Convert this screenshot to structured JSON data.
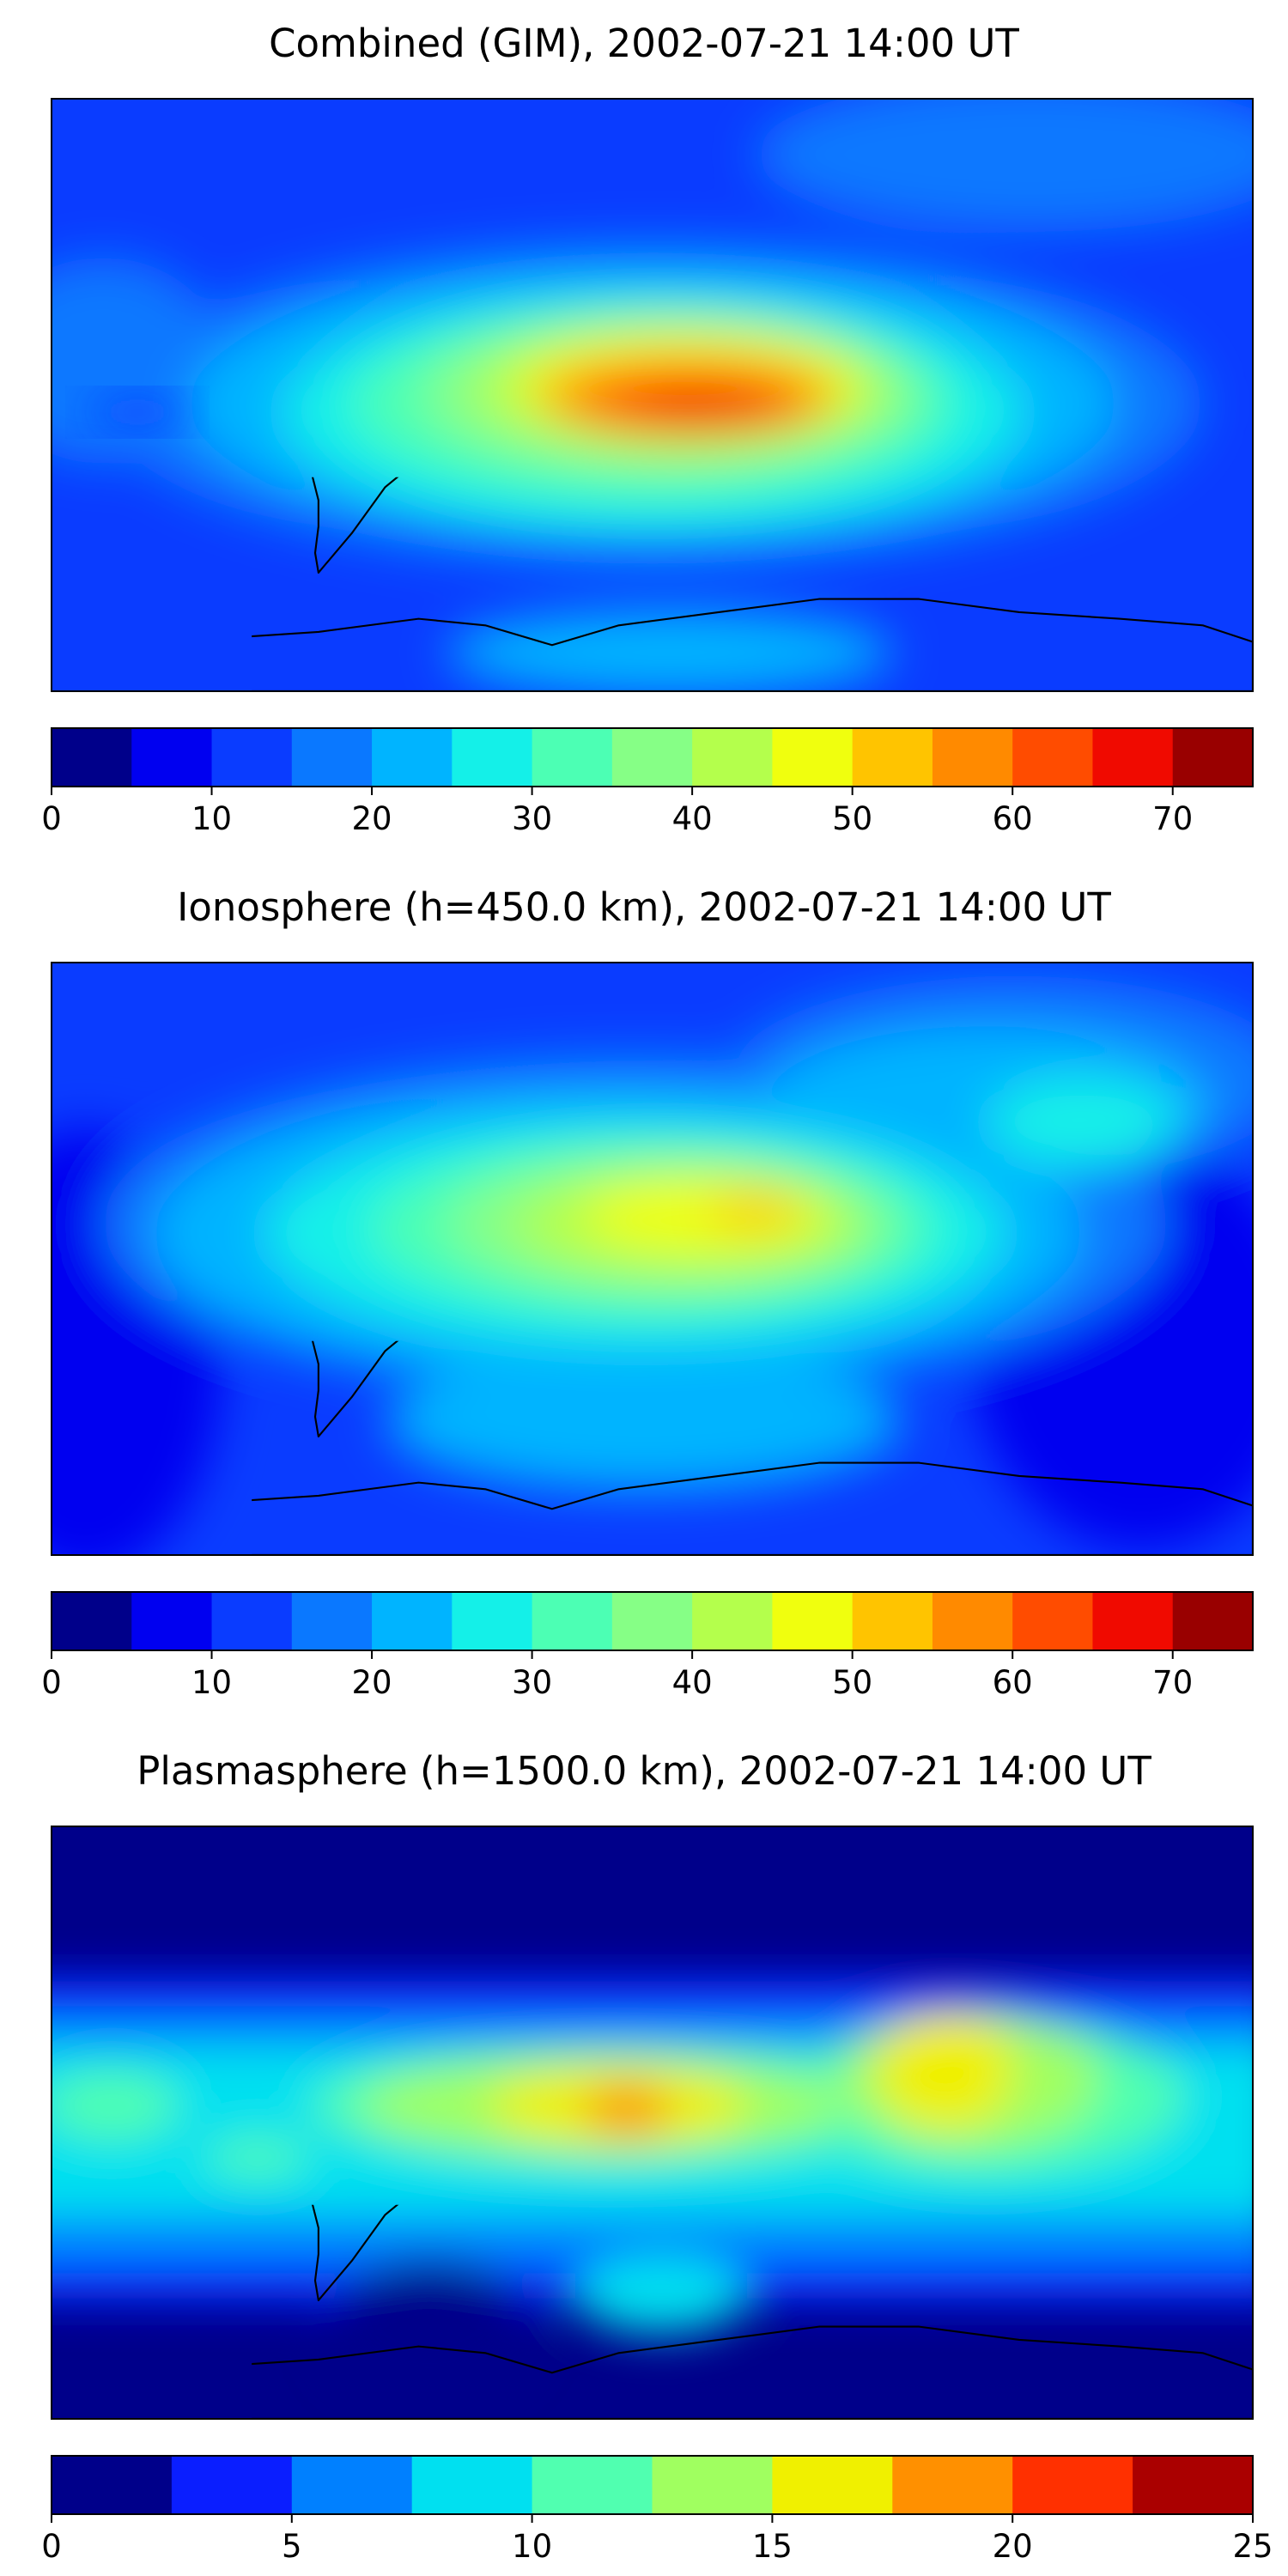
{
  "panels": [
    {
      "title": "Combined (GIM), 2002-07-21 14:00 UT",
      "colorbar": {
        "ticks": [
          {
            "value": 0,
            "label": "0"
          },
          {
            "value": 10,
            "label": "10"
          },
          {
            "value": 20,
            "label": "20"
          },
          {
            "value": 30,
            "label": "30"
          },
          {
            "value": 40,
            "label": "40"
          },
          {
            "value": 50,
            "label": "50"
          },
          {
            "value": 60,
            "label": "60"
          },
          {
            "value": 70,
            "label": "70"
          }
        ],
        "range": [
          0,
          75
        ],
        "colors": [
          "#00008a",
          "#0000f0",
          "#0a3cff",
          "#0a78ff",
          "#00b4ff",
          "#14f0e8",
          "#4cffb4",
          "#86ff86",
          "#b4ff4c",
          "#f0ff0e",
          "#ffc400",
          "#ff8a00",
          "#ff4c00",
          "#f00a00",
          "#990000"
        ]
      }
    },
    {
      "title": "Ionosphere  (h=450.0 km), 2002-07-21 14:00 UT",
      "colorbar": {
        "ticks": [
          {
            "value": 0,
            "label": "0"
          },
          {
            "value": 10,
            "label": "10"
          },
          {
            "value": 20,
            "label": "20"
          },
          {
            "value": 30,
            "label": "30"
          },
          {
            "value": 40,
            "label": "40"
          },
          {
            "value": 50,
            "label": "50"
          },
          {
            "value": 60,
            "label": "60"
          },
          {
            "value": 70,
            "label": "70"
          }
        ],
        "range": [
          0,
          75
        ],
        "colors": [
          "#00008a",
          "#0000f0",
          "#0a3cff",
          "#0a78ff",
          "#00b4ff",
          "#14f0e8",
          "#4cffb4",
          "#86ff86",
          "#b4ff4c",
          "#f0ff0e",
          "#ffc400",
          "#ff8a00",
          "#ff4c00",
          "#f00a00",
          "#990000"
        ]
      }
    },
    {
      "title": "Plasmasphere (h=1500.0 km), 2002-07-21 14:00 UT",
      "colorbar": {
        "ticks": [
          {
            "value": 0,
            "label": "0"
          },
          {
            "value": 5,
            "label": "5"
          },
          {
            "value": 10,
            "label": "10"
          },
          {
            "value": 15,
            "label": "15"
          },
          {
            "value": 20,
            "label": "20"
          },
          {
            "value": 25,
            "label": "25"
          }
        ],
        "range": [
          0,
          25
        ],
        "colors": [
          "#00008a",
          "#0a1eff",
          "#0080ff",
          "#00e0f0",
          "#50ffb0",
          "#a0ff60",
          "#f0f000",
          "#ff9000",
          "#ff3000",
          "#aa0000"
        ]
      }
    }
  ]
}
